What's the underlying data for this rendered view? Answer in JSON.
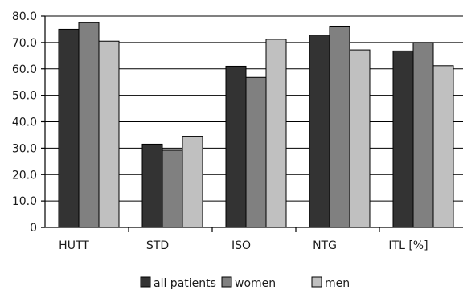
{
  "chart_data": {
    "type": "bar",
    "categories": [
      "HUTT",
      "STD",
      "ISO",
      "NTG",
      "ITL [%]"
    ],
    "series": [
      {
        "name": "all patients",
        "values": [
          75.0,
          31.5,
          61.0,
          72.8,
          66.8
        ],
        "color": "#333333"
      },
      {
        "name": "women",
        "values": [
          77.5,
          29.2,
          56.8,
          76.2,
          70.0
        ],
        "color": "#808080"
      },
      {
        "name": "men",
        "values": [
          70.5,
          34.5,
          71.2,
          67.2,
          61.2
        ],
        "color": "#c0c0c0"
      }
    ],
    "y_ticks": [
      "0",
      "10.0",
      "20.0",
      "30.0",
      "40.0",
      "50.0",
      "60.0",
      "70.0",
      "80.0"
    ],
    "ylim": [
      0,
      80
    ],
    "grid": true,
    "legend_position": "bottom-center",
    "title": "",
    "xlabel": "",
    "ylabel": ""
  }
}
